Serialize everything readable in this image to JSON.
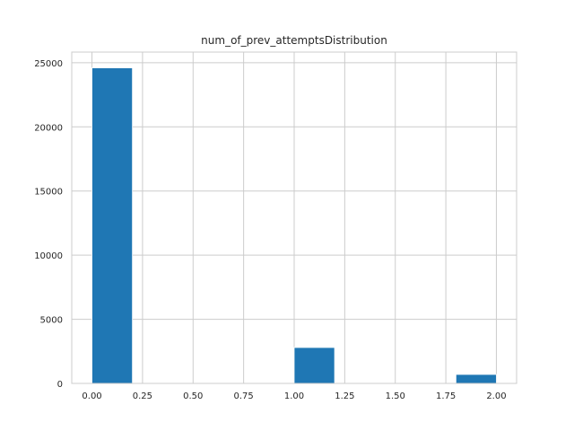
{
  "chart_data": {
    "type": "bar",
    "title": "num_of_prev_attemptsDistribution",
    "xlabel": "",
    "ylabel": "",
    "bins": [
      {
        "x0": 0.0,
        "x1": 0.2,
        "count": 24600
      },
      {
        "x0": 0.2,
        "x1": 0.4,
        "count": 0
      },
      {
        "x0": 0.4,
        "x1": 0.6,
        "count": 0
      },
      {
        "x0": 0.6,
        "x1": 0.8,
        "count": 0
      },
      {
        "x0": 0.8,
        "x1": 1.0,
        "count": 0
      },
      {
        "x0": 1.0,
        "x1": 1.2,
        "count": 2800
      },
      {
        "x0": 1.2,
        "x1": 1.4,
        "count": 0
      },
      {
        "x0": 1.4,
        "x1": 1.6,
        "count": 0
      },
      {
        "x0": 1.6,
        "x1": 1.8,
        "count": 0
      },
      {
        "x0": 1.8,
        "x1": 2.0,
        "count": 700
      }
    ],
    "xlim": [
      -0.1,
      2.1
    ],
    "ylim": [
      0,
      25830
    ],
    "x_ticks": [
      "0.00",
      "0.25",
      "0.50",
      "0.75",
      "1.00",
      "1.25",
      "1.50",
      "1.75",
      "2.00"
    ],
    "x_tick_values": [
      0.0,
      0.25,
      0.5,
      0.75,
      1.0,
      1.25,
      1.5,
      1.75,
      2.0
    ],
    "y_ticks": [
      "0",
      "5000",
      "10000",
      "15000",
      "20000",
      "25000"
    ],
    "y_tick_values": [
      0,
      5000,
      10000,
      15000,
      20000,
      25000
    ],
    "grid": true,
    "legend": "none",
    "colors": {
      "bar": "#1f77b4",
      "grid": "#cccccc",
      "frame": "#cccccc",
      "text": "#262626"
    }
  }
}
